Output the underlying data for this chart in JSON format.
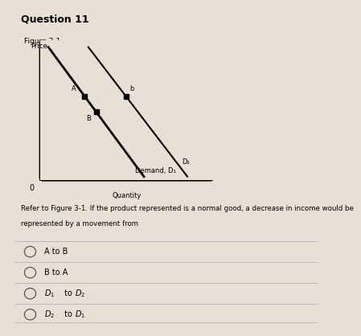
{
  "title": "Question 11",
  "figure_label": "Figure 3-1",
  "bg_color": "#e8e0d5",
  "header_color": "#c8c0b5",
  "ylabel": "Price",
  "xlabel": "Quantity",
  "origin_label": "0",
  "d1_label": "Demand, D₁",
  "d2_label": "D₂",
  "line_color": "#000000",
  "question_text_line1": "Refer to Figure 3-1. If the product represented is a normal good, a decrease in income would be",
  "question_text_line2": "represented by a movement from",
  "options": [
    "A to B",
    "B to A",
    "D₁ to D₂",
    "D₂ to D₁"
  ]
}
